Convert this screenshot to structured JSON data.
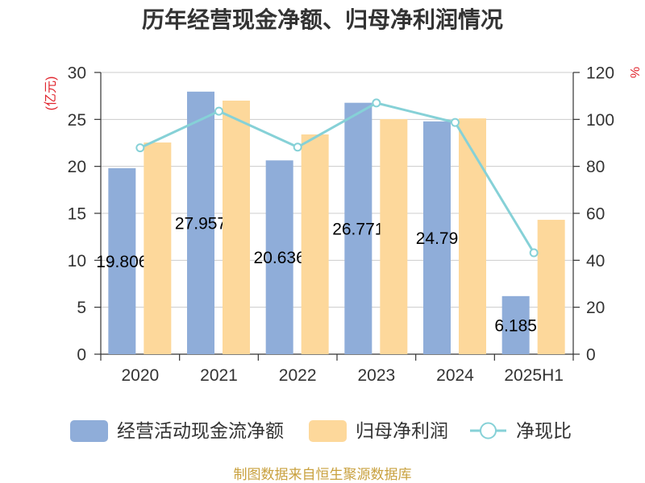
{
  "chart_data": {
    "type": "bar",
    "title": "历年经营现金净额、归母净利润情况",
    "categories": [
      "2020",
      "2021",
      "2022",
      "2023",
      "2024",
      "2025H1"
    ],
    "y_left": {
      "label": "(亿元)",
      "ylim": [
        0,
        30
      ],
      "ticks": [
        0,
        5,
        10,
        15,
        20,
        25,
        30
      ]
    },
    "y_right": {
      "label": "%",
      "ylim": [
        0,
        120
      ],
      "ticks": [
        0,
        20,
        40,
        60,
        80,
        100,
        120
      ]
    },
    "series": [
      {
        "name": "经营活动现金流净额",
        "type": "bar",
        "axis": "left",
        "color": "#8fadd9",
        "values": [
          19.806,
          27.957,
          20.636,
          26.771,
          24.79,
          6.185
        ]
      },
      {
        "name": "归母净利润",
        "type": "bar",
        "axis": "left",
        "color": "#fdd89b",
        "values": [
          22.54,
          27.0,
          23.4,
          25.03,
          25.11,
          14.31
        ]
      },
      {
        "name": "净现比",
        "type": "line",
        "axis": "right",
        "color": "#86d1d7",
        "values": [
          87.9,
          103.5,
          88.2,
          107.0,
          98.7,
          43.2
        ]
      }
    ],
    "grid": true,
    "legend_position": "bottom"
  },
  "footer": "制图数据来自恒生聚源数据库"
}
